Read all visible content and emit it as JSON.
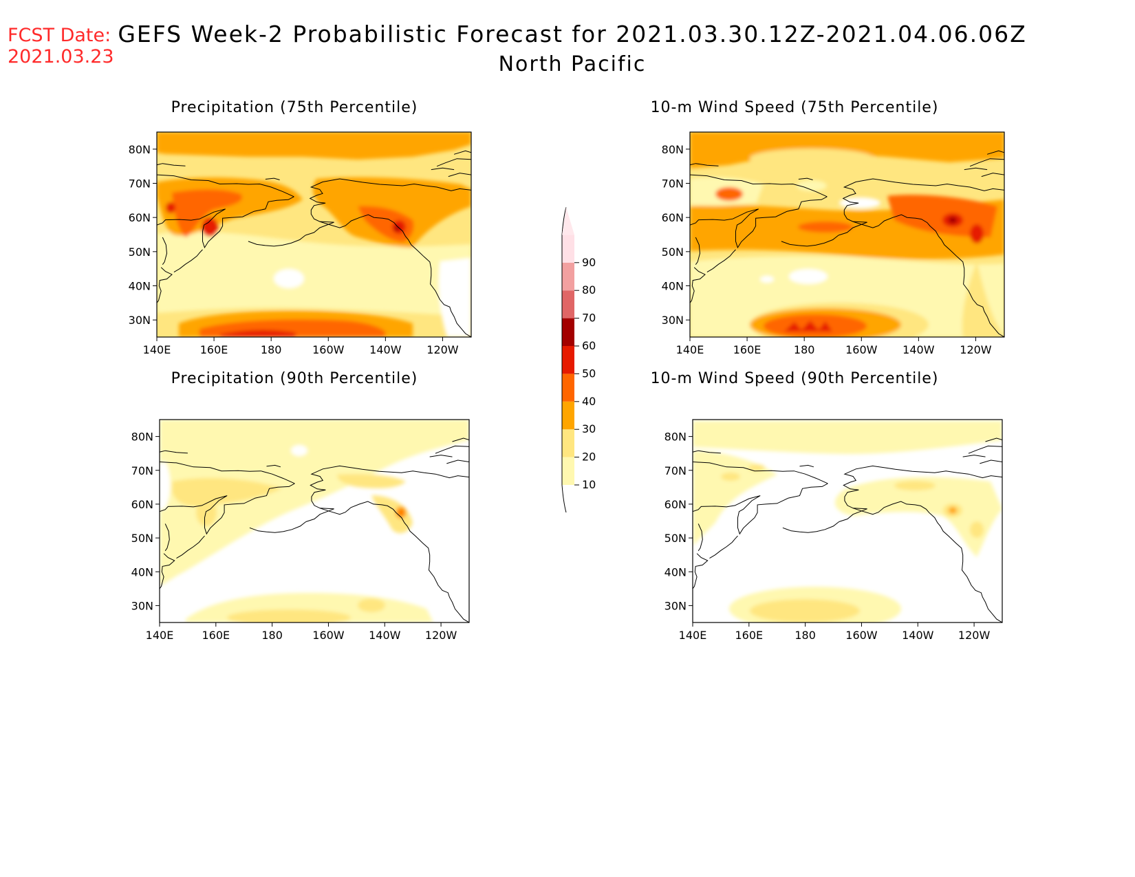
{
  "header": {
    "fcst_label": "FCST Date:",
    "fcst_date": "2021.03.23",
    "title": "GEFS Week-2 Probabilistic Forecast for 2021.03.30.12Z-2021.04.06.06Z",
    "region": "North Pacific"
  },
  "colorbar": {
    "levels": [
      "10",
      "20",
      "30",
      "40",
      "50",
      "60",
      "70",
      "80",
      "90"
    ],
    "colors": [
      "#fff8b0",
      "#ffe680",
      "#ffa500",
      "#ff6600",
      "#e61a00",
      "#a30000",
      "#e06666",
      "#f2a0a0",
      "#ffe0e6"
    ]
  },
  "panels": [
    {
      "id": "precip75",
      "title": "Precipitation (75th Percentile)",
      "lat_ticks": [
        "80N",
        "70N",
        "60N",
        "50N",
        "40N",
        "30N"
      ],
      "lon_ticks": [
        "140E",
        "160E",
        "180",
        "160W",
        "140W",
        "120W"
      ]
    },
    {
      "id": "wind75",
      "title": "10-m Wind Speed (75th Percentile)",
      "lat_ticks": [
        "80N",
        "70N",
        "60N",
        "50N",
        "40N",
        "30N"
      ],
      "lon_ticks": [
        "140E",
        "160E",
        "180",
        "160W",
        "140W",
        "120W"
      ]
    },
    {
      "id": "precip90",
      "title": "Precipitation (90th Percentile)",
      "lat_ticks": [
        "80N",
        "70N",
        "60N",
        "50N",
        "40N",
        "30N"
      ],
      "lon_ticks": [
        "140E",
        "160E",
        "180",
        "160W",
        "140W",
        "120W"
      ]
    },
    {
      "id": "wind90",
      "title": "10-m Wind Speed (90th Percentile)",
      "lat_ticks": [
        "80N",
        "70N",
        "60N",
        "50N",
        "40N",
        "30N"
      ],
      "lon_ticks": [
        "140E",
        "160E",
        "180",
        "160W",
        "140W",
        "120W"
      ]
    }
  ]
}
